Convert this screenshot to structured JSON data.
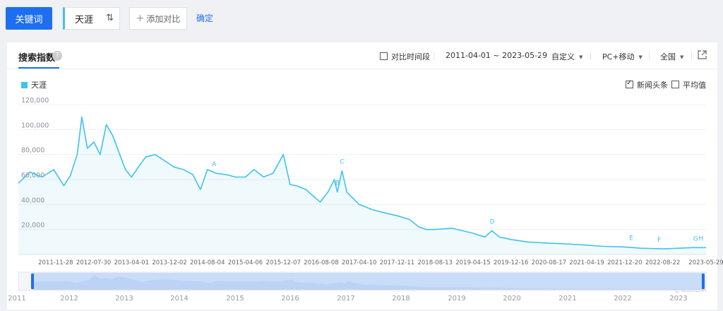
{
  "topbar": {
    "keyword_button": "关键词",
    "term": "天涯",
    "add_compare": "添加对比",
    "confirm": "确定"
  },
  "panel": {
    "title": "搜索指数",
    "help": "?",
    "compare_period": "对比时间段",
    "date_range": "2011-04-01 ~ 2023-05-29",
    "custom": "自定义",
    "device": "PC+移动",
    "region": "全国",
    "legend_series": "天涯",
    "news_headlines": "新闻头条",
    "average": "平均值",
    "watermark": "@百度指数"
  },
  "colors": {
    "accent": "#1e6ff0",
    "series": "#3fc3eb"
  },
  "icons": [
    "swap-icon",
    "plus-icon",
    "help-icon",
    "external-link-icon",
    "caret-down-icon",
    "checkbox-icon"
  ],
  "chart_data": {
    "type": "area",
    "series_name": "天涯",
    "ylim": [
      0,
      120000
    ],
    "yticks": [
      "120,000",
      "100,000",
      "80,000",
      "60,000",
      "40,000",
      "20,000"
    ],
    "xticks": [
      "2011-11-28",
      "2012-07-30",
      "2013-04-01",
      "2013-12-02",
      "2014-08-04",
      "2015-04-06",
      "2015-12-07",
      "2016-08-08",
      "2017-04-10",
      "2017-12-11",
      "2018-08-13",
      "2019-04-15",
      "2019-12-16",
      "2020-08-17",
      "2021-04-19",
      "2021-12-20",
      "2022-08-22",
      "2023-05-29"
    ],
    "points": [
      [
        "2011-04-01",
        57000
      ],
      [
        "2011-06-15",
        66000
      ],
      [
        "2011-09-01",
        62000
      ],
      [
        "2011-11-15",
        68000
      ],
      [
        "2012-01-20",
        55000
      ],
      [
        "2012-03-01",
        63000
      ],
      [
        "2012-04-15",
        80000
      ],
      [
        "2012-05-15",
        110000
      ],
      [
        "2012-06-20",
        85000
      ],
      [
        "2012-08-01",
        90000
      ],
      [
        "2012-09-10",
        80000
      ],
      [
        "2012-10-20",
        104000
      ],
      [
        "2012-12-01",
        95000
      ],
      [
        "2013-01-15",
        80000
      ],
      [
        "2013-02-20",
        68000
      ],
      [
        "2013-04-01",
        62000
      ],
      [
        "2013-05-15",
        70000
      ],
      [
        "2013-07-01",
        78000
      ],
      [
        "2013-09-01",
        80000
      ],
      [
        "2013-11-01",
        75000
      ],
      [
        "2014-01-01",
        70000
      ],
      [
        "2014-03-01",
        68000
      ],
      [
        "2014-05-01",
        64000
      ],
      [
        "2014-06-20",
        52000
      ],
      [
        "2014-08-04",
        68000
      ],
      [
        "2014-10-01",
        65000
      ],
      [
        "2014-12-01",
        64000
      ],
      [
        "2015-02-01",
        62000
      ],
      [
        "2015-04-06",
        62000
      ],
      [
        "2015-06-01",
        68000
      ],
      [
        "2015-08-01",
        62000
      ],
      [
        "2015-10-01",
        65000
      ],
      [
        "2015-12-07",
        80000
      ],
      [
        "2016-01-20",
        56000
      ],
      [
        "2016-03-01",
        55000
      ],
      [
        "2016-05-01",
        52000
      ],
      [
        "2016-06-15",
        47000
      ],
      [
        "2016-08-01",
        42000
      ],
      [
        "2016-09-20",
        50000
      ],
      [
        "2016-11-01",
        60000
      ],
      [
        "2016-11-20",
        50000
      ],
      [
        "2016-12-20",
        67000
      ],
      [
        "2017-01-20",
        50000
      ],
      [
        "2017-04-10",
        40000
      ],
      [
        "2017-07-01",
        36000
      ],
      [
        "2017-10-01",
        33000
      ],
      [
        "2017-12-11",
        31000
      ],
      [
        "2018-03-01",
        28000
      ],
      [
        "2018-05-01",
        22000
      ],
      [
        "2018-06-20",
        20000
      ],
      [
        "2018-08-13",
        20000
      ],
      [
        "2018-12-01",
        21000
      ],
      [
        "2019-04-15",
        17000
      ],
      [
        "2019-07-01",
        14000
      ],
      [
        "2019-08-15",
        19000
      ],
      [
        "2019-10-01",
        14000
      ],
      [
        "2019-12-16",
        12000
      ],
      [
        "2020-04-01",
        10000
      ],
      [
        "2020-08-17",
        9000
      ],
      [
        "2020-12-01",
        8500
      ],
      [
        "2021-04-19",
        7500
      ],
      [
        "2021-08-01",
        6500
      ],
      [
        "2021-12-20",
        6000
      ],
      [
        "2022-04-01",
        5000
      ],
      [
        "2022-08-22",
        4500
      ],
      [
        "2022-12-01",
        5000
      ],
      [
        "2023-03-01",
        5500
      ],
      [
        "2023-05-29",
        5500
      ]
    ],
    "annotations": [
      {
        "label": "A",
        "date": "2014-09-15"
      },
      {
        "label": "B",
        "date": "2016-11-20"
      },
      {
        "label": "C",
        "date": "2016-12-20"
      },
      {
        "label": "D",
        "date": "2019-08-15"
      },
      {
        "label": "E",
        "date": "2022-02-01"
      },
      {
        "label": "F",
        "date": "2022-08-01"
      },
      {
        "label": "G",
        "date": "2023-03-20"
      },
      {
        "label": "H",
        "date": "2023-04-25"
      }
    ],
    "slider_years": [
      "2011",
      "2012",
      "2013",
      "2014",
      "2015",
      "2016",
      "2017",
      "2018",
      "2019",
      "2020",
      "2021",
      "2022",
      "2023"
    ]
  }
}
